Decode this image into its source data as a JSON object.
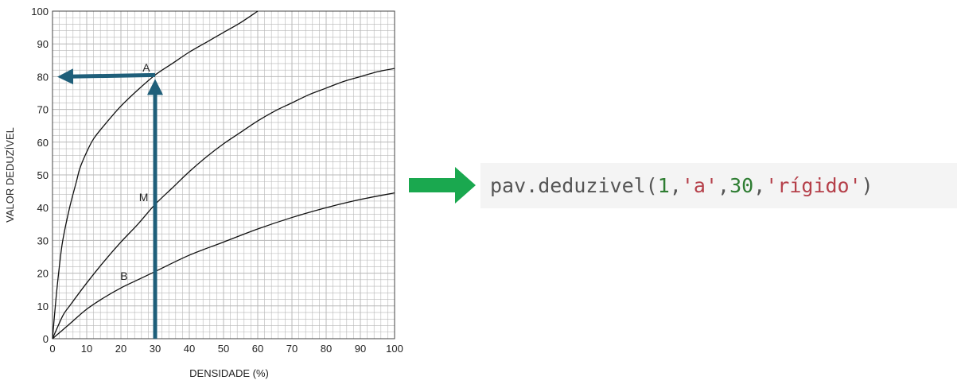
{
  "chart_data": {
    "type": "line",
    "xlabel": "DENSIDADE (%)",
    "ylabel": "VALOR DEDUZÍVEL",
    "xlim": [
      0,
      100
    ],
    "ylim": [
      0,
      100
    ],
    "x_ticks": [
      0,
      10,
      20,
      30,
      40,
      50,
      60,
      70,
      80,
      90,
      100
    ],
    "y_ticks": [
      0,
      10,
      20,
      30,
      40,
      50,
      60,
      70,
      80,
      90,
      100
    ],
    "grid": true,
    "series": [
      {
        "name": "A",
        "x": [
          0,
          1,
          2,
          3,
          5,
          7,
          8,
          10,
          12,
          15,
          20,
          25,
          30,
          35,
          40,
          45,
          50,
          55,
          60
        ],
        "y": [
          0,
          12,
          22,
          30,
          40,
          48,
          52,
          57,
          61,
          65,
          71,
          76,
          80.5,
          84,
          87.5,
          90.5,
          93.5,
          96.5,
          100
        ]
      },
      {
        "name": "M",
        "x": [
          0,
          3,
          5,
          10,
          15,
          20,
          25,
          30,
          35,
          40,
          45,
          50,
          55,
          60,
          65,
          70,
          75,
          80,
          85,
          90,
          95,
          100
        ],
        "y": [
          0,
          7,
          10,
          17,
          23.5,
          29.5,
          35,
          41,
          46,
          51,
          55.5,
          59.5,
          63,
          66.5,
          69.5,
          72,
          74.5,
          76.5,
          78.5,
          80,
          81.5,
          82.5
        ]
      },
      {
        "name": "B",
        "x": [
          0,
          5,
          10,
          15,
          20,
          25,
          30,
          40,
          50,
          60,
          70,
          80,
          90,
          100
        ],
        "y": [
          0,
          4.5,
          9,
          12.5,
          15.5,
          18,
          20.5,
          25.5,
          29.5,
          33.5,
          37,
          40,
          42.5,
          44.5
        ]
      }
    ],
    "annotations": [
      {
        "text": "A",
        "x": 28.5,
        "y": 81.5
      },
      {
        "text": "M",
        "x": 28,
        "y": 42
      },
      {
        "text": "B",
        "x": 22,
        "y": 18
      }
    ],
    "reading": {
      "x": 30,
      "y": 80.5,
      "y_axis_target": 80
    },
    "colors": {
      "reading_arrows": "#1f5f7a",
      "curves": "#111111",
      "grid": "#b8b8b8"
    }
  },
  "pointer": {
    "icon": "right-arrow-icon",
    "color": "#1aa84f"
  },
  "code": {
    "tokens": [
      {
        "text": "pav.deduzivel(",
        "kind": "plain"
      },
      {
        "text": "1",
        "kind": "num"
      },
      {
        "text": ", ",
        "kind": "plain"
      },
      {
        "text": "'a'",
        "kind": "str"
      },
      {
        "text": ", ",
        "kind": "plain"
      },
      {
        "text": "30",
        "kind": "num"
      },
      {
        "text": ", ",
        "kind": "plain"
      },
      {
        "text": "'rígido'",
        "kind": "str"
      },
      {
        "text": ")",
        "kind": "plain"
      }
    ]
  }
}
